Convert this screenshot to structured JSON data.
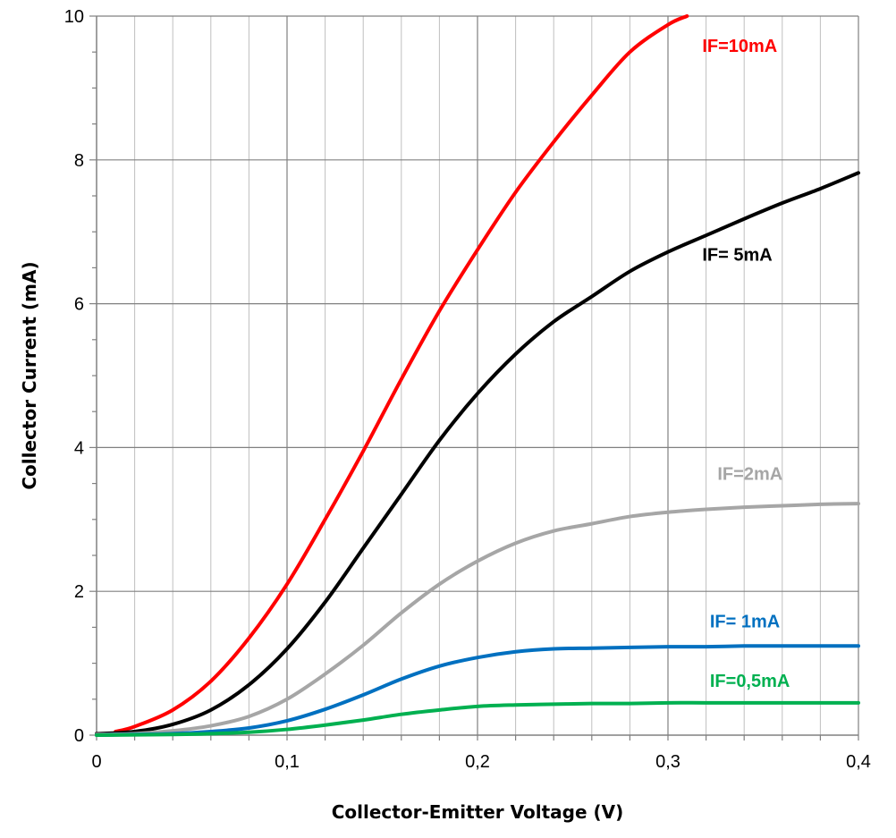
{
  "chart_data": {
    "type": "line",
    "title": "",
    "xlabel": "Collector-Emitter Voltage (V)",
    "ylabel": "Collector Current  (mA)",
    "xlim": [
      0,
      0.4
    ],
    "ylim": [
      0,
      10
    ],
    "x_ticks": [
      0,
      0.1,
      0.2,
      0.3,
      0.4
    ],
    "x_tick_labels": [
      "0",
      "0,1",
      "0,2",
      "0,3",
      "0,4"
    ],
    "y_ticks": [
      0,
      2,
      4,
      6,
      8,
      10
    ],
    "y_tick_labels": [
      "0",
      "2",
      "4",
      "6",
      "8",
      "10"
    ],
    "grid": true,
    "minor_x_step": 0.02,
    "major_y_step": 2,
    "series": [
      {
        "name": "IF=10mA",
        "color": "#ff0000",
        "label_at": [
          0.318,
          9.5
        ],
        "points": [
          [
            0.01,
            0.05
          ],
          [
            0.02,
            0.12
          ],
          [
            0.04,
            0.35
          ],
          [
            0.06,
            0.75
          ],
          [
            0.08,
            1.35
          ],
          [
            0.1,
            2.1
          ],
          [
            0.12,
            3.0
          ],
          [
            0.14,
            3.95
          ],
          [
            0.16,
            4.95
          ],
          [
            0.18,
            5.9
          ],
          [
            0.2,
            6.75
          ],
          [
            0.22,
            7.55
          ],
          [
            0.24,
            8.25
          ],
          [
            0.26,
            8.9
          ],
          [
            0.28,
            9.5
          ],
          [
            0.3,
            9.88
          ],
          [
            0.31,
            10.0
          ]
        ]
      },
      {
        "name": "IF= 5mA",
        "color": "#000000",
        "label_at": [
          0.318,
          6.6
        ],
        "points": [
          [
            0.0,
            0.02
          ],
          [
            0.02,
            0.05
          ],
          [
            0.04,
            0.15
          ],
          [
            0.06,
            0.35
          ],
          [
            0.08,
            0.7
          ],
          [
            0.1,
            1.2
          ],
          [
            0.12,
            1.85
          ],
          [
            0.14,
            2.6
          ],
          [
            0.16,
            3.35
          ],
          [
            0.18,
            4.1
          ],
          [
            0.2,
            4.75
          ],
          [
            0.22,
            5.3
          ],
          [
            0.24,
            5.75
          ],
          [
            0.26,
            6.1
          ],
          [
            0.28,
            6.45
          ],
          [
            0.3,
            6.72
          ],
          [
            0.32,
            6.95
          ],
          [
            0.34,
            7.18
          ],
          [
            0.36,
            7.4
          ],
          [
            0.38,
            7.6
          ],
          [
            0.4,
            7.82
          ]
        ]
      },
      {
        "name": "IF=2mA",
        "color": "#a6a6a6",
        "label_at": [
          0.326,
          3.55
        ],
        "points": [
          [
            0.0,
            0.01
          ],
          [
            0.02,
            0.02
          ],
          [
            0.04,
            0.06
          ],
          [
            0.06,
            0.13
          ],
          [
            0.08,
            0.26
          ],
          [
            0.1,
            0.5
          ],
          [
            0.12,
            0.85
          ],
          [
            0.14,
            1.25
          ],
          [
            0.16,
            1.7
          ],
          [
            0.18,
            2.1
          ],
          [
            0.2,
            2.42
          ],
          [
            0.22,
            2.67
          ],
          [
            0.24,
            2.84
          ],
          [
            0.26,
            2.94
          ],
          [
            0.28,
            3.04
          ],
          [
            0.3,
            3.1
          ],
          [
            0.32,
            3.14
          ],
          [
            0.34,
            3.17
          ],
          [
            0.36,
            3.19
          ],
          [
            0.38,
            3.21
          ],
          [
            0.4,
            3.22
          ]
        ]
      },
      {
        "name": "IF= 1mA",
        "color": "#0070c0",
        "label_at": [
          0.322,
          1.5
        ],
        "points": [
          [
            0.0,
            0.0
          ],
          [
            0.02,
            0.01
          ],
          [
            0.04,
            0.02
          ],
          [
            0.06,
            0.05
          ],
          [
            0.08,
            0.1
          ],
          [
            0.1,
            0.2
          ],
          [
            0.12,
            0.36
          ],
          [
            0.14,
            0.56
          ],
          [
            0.16,
            0.78
          ],
          [
            0.18,
            0.96
          ],
          [
            0.2,
            1.08
          ],
          [
            0.22,
            1.16
          ],
          [
            0.24,
            1.2
          ],
          [
            0.26,
            1.21
          ],
          [
            0.28,
            1.22
          ],
          [
            0.3,
            1.23
          ],
          [
            0.32,
            1.23
          ],
          [
            0.34,
            1.24
          ],
          [
            0.36,
            1.24
          ],
          [
            0.38,
            1.24
          ],
          [
            0.4,
            1.24
          ]
        ]
      },
      {
        "name": "IF=0,5mA",
        "color": "#00b050",
        "label_at": [
          0.322,
          0.67
        ],
        "points": [
          [
            0.0,
            0.0
          ],
          [
            0.04,
            0.01
          ],
          [
            0.06,
            0.02
          ],
          [
            0.08,
            0.04
          ],
          [
            0.1,
            0.08
          ],
          [
            0.12,
            0.14
          ],
          [
            0.14,
            0.21
          ],
          [
            0.16,
            0.29
          ],
          [
            0.18,
            0.35
          ],
          [
            0.2,
            0.4
          ],
          [
            0.22,
            0.42
          ],
          [
            0.24,
            0.43
          ],
          [
            0.26,
            0.44
          ],
          [
            0.28,
            0.44
          ],
          [
            0.3,
            0.45
          ],
          [
            0.32,
            0.45
          ],
          [
            0.34,
            0.45
          ],
          [
            0.36,
            0.45
          ],
          [
            0.38,
            0.45
          ],
          [
            0.4,
            0.45
          ]
        ]
      }
    ]
  }
}
